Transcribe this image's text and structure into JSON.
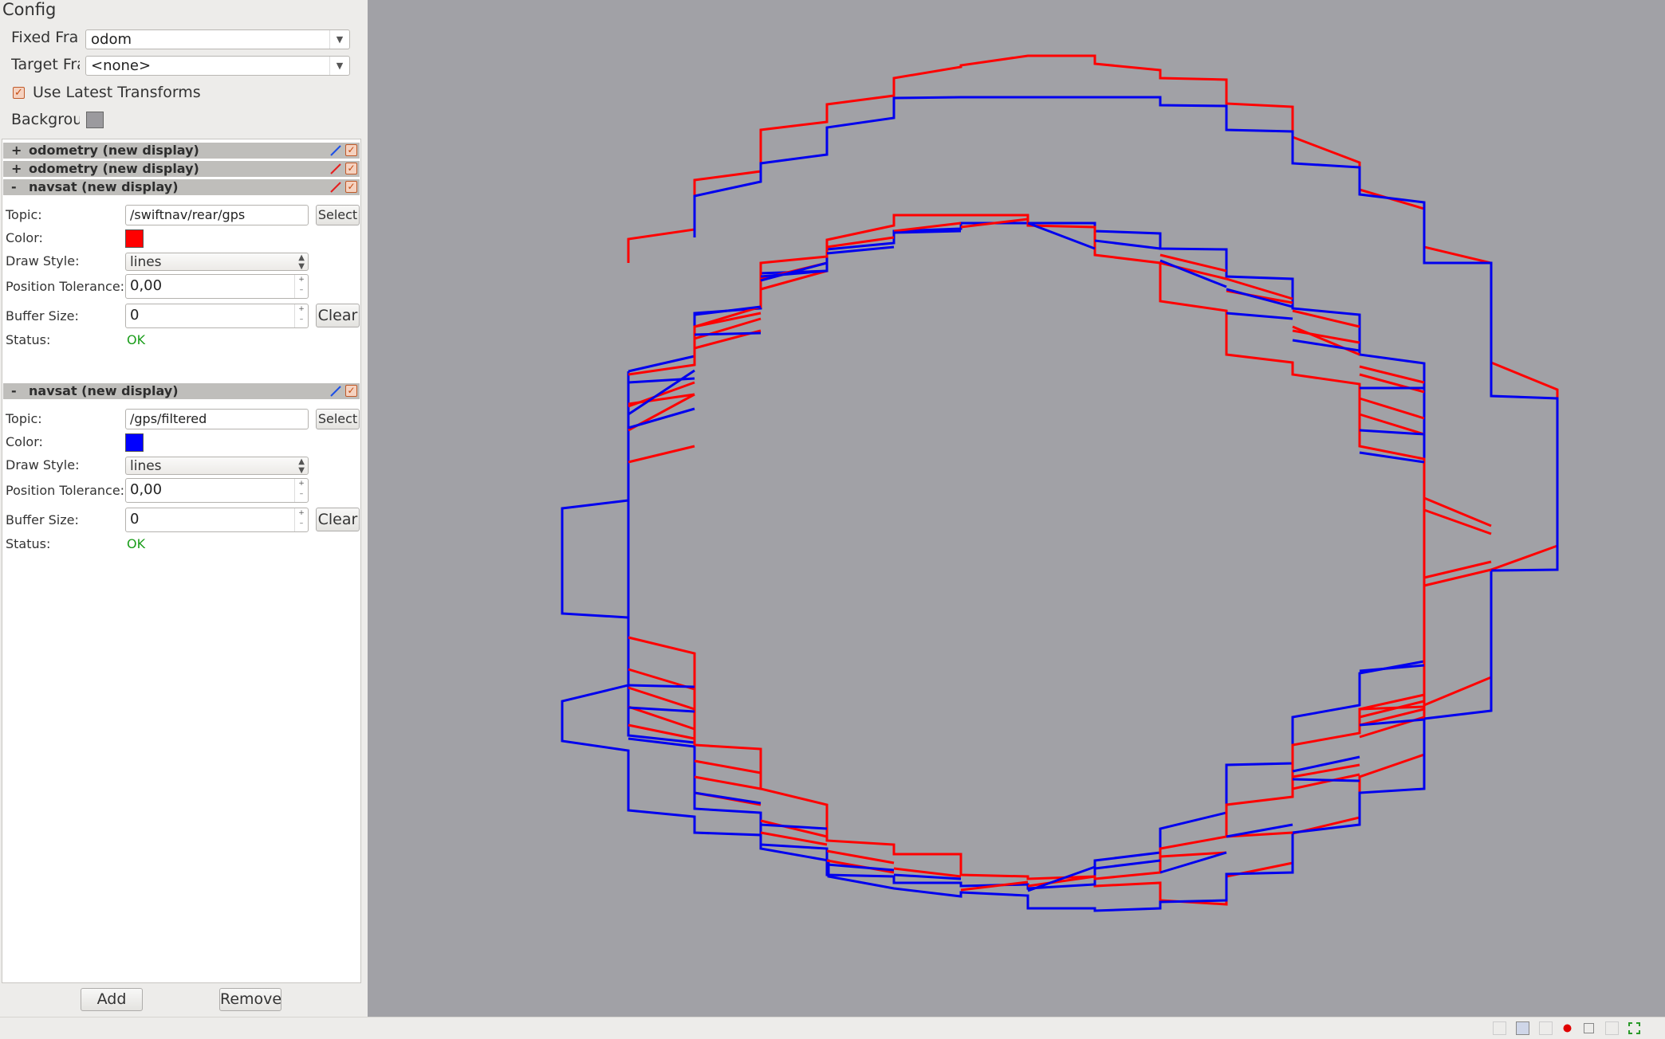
{
  "config": {
    "title": "Config",
    "fixed_frame": {
      "label": "Fixed Frar",
      "value": "odom"
    },
    "target_frame": {
      "label": "Target Fra",
      "value": "<none>"
    },
    "use_latest_transforms": {
      "label": "Use Latest Transforms",
      "checked": true
    },
    "background": {
      "label": "Backgrour",
      "color": "#9b9a9e"
    }
  },
  "displays": [
    {
      "expander": "+",
      "name": "odometry (new display)",
      "line_color": "#1e50e6",
      "enabled": true
    },
    {
      "expander": "+",
      "name": "odometry (new display)",
      "line_color": "#e61e1e",
      "enabled": true
    },
    {
      "expander": "-",
      "name": "navsat (new display)",
      "line_color": "#e61e1e",
      "enabled": true,
      "props": {
        "topic_label": "Topic:",
        "topic": "/swiftnav/rear/gps",
        "select_label": "Select",
        "color_label": "Color:",
        "color": "#ff0000",
        "draw_style_label": "Draw Style:",
        "draw_style": "lines",
        "position_tolerance_label": "Position Tolerance:",
        "position_tolerance": "0,00",
        "buffer_size_label": "Buffer Size:",
        "buffer_size": "0",
        "clear_label": "Clear",
        "status_label": "Status:",
        "status": "OK"
      }
    },
    {
      "expander": "-",
      "name": "navsat (new display)",
      "line_color": "#1e50e6",
      "enabled": true,
      "props": {
        "topic_label": "Topic:",
        "topic": "/gps/filtered",
        "select_label": "Select",
        "color_label": "Color:",
        "color": "#0000ff",
        "draw_style_label": "Draw Style:",
        "draw_style": "lines",
        "position_tolerance_label": "Position Tolerance:",
        "position_tolerance": "0,00",
        "buffer_size_label": "Buffer Size:",
        "buffer_size": "0",
        "clear_label": "Clear",
        "status_label": "Status:",
        "status": "OK"
      }
    }
  ],
  "buttons": {
    "add": "Add",
    "remove": "Remove"
  },
  "viewport": {
    "background": "#a1a1a6",
    "red_color": "#ff0000",
    "blue_color": "#0000ee"
  },
  "statusbar_icons": [
    "blank-icon",
    "save-icon",
    "blank-icon",
    "record-icon",
    "stop-icon",
    "blank-icon",
    "fullscreen-icon"
  ]
}
